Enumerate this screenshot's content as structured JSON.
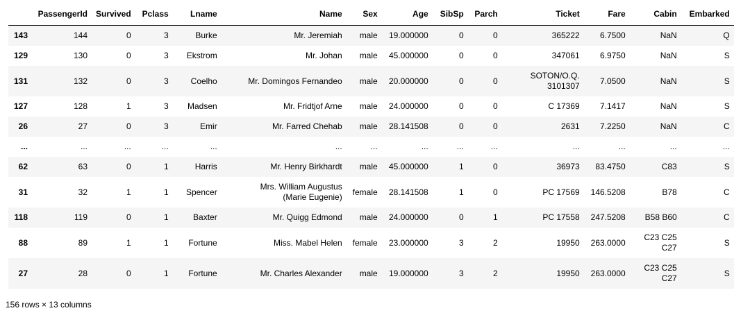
{
  "table": {
    "columns": [
      "PassengerId",
      "Survived",
      "Pclass",
      "Lname",
      "Name",
      "Sex",
      "Age",
      "SibSp",
      "Parch",
      "Ticket",
      "Fare",
      "Cabin",
      "Embarked"
    ],
    "rows": [
      {
        "index": "143",
        "cells": [
          "144",
          "0",
          "3",
          "Burke",
          "Mr. Jeremiah",
          "male",
          "19.000000",
          "0",
          "0",
          "365222",
          "6.7500",
          "NaN",
          "Q"
        ]
      },
      {
        "index": "129",
        "cells": [
          "130",
          "0",
          "3",
          "Ekstrom",
          "Mr. Johan",
          "male",
          "45.000000",
          "0",
          "0",
          "347061",
          "6.9750",
          "NaN",
          "S"
        ]
      },
      {
        "index": "131",
        "cells": [
          "132",
          "0",
          "3",
          "Coelho",
          "Mr. Domingos Fernandeo",
          "male",
          "20.000000",
          "0",
          "0",
          "SOTON/O.Q. 3101307",
          "7.0500",
          "NaN",
          "S"
        ]
      },
      {
        "index": "127",
        "cells": [
          "128",
          "1",
          "3",
          "Madsen",
          "Mr. Fridtjof Arne",
          "male",
          "24.000000",
          "0",
          "0",
          "C 17369",
          "7.1417",
          "NaN",
          "S"
        ]
      },
      {
        "index": "26",
        "cells": [
          "27",
          "0",
          "3",
          "Emir",
          "Mr. Farred Chehab",
          "male",
          "28.141508",
          "0",
          "0",
          "2631",
          "7.2250",
          "NaN",
          "C"
        ]
      },
      {
        "index": "...",
        "cells": [
          "...",
          "...",
          "...",
          "...",
          "...",
          "...",
          "...",
          "...",
          "...",
          "...",
          "...",
          "...",
          "..."
        ]
      },
      {
        "index": "62",
        "cells": [
          "63",
          "0",
          "1",
          "Harris",
          "Mr. Henry Birkhardt",
          "male",
          "45.000000",
          "1",
          "0",
          "36973",
          "83.4750",
          "C83",
          "S"
        ]
      },
      {
        "index": "31",
        "cells": [
          "32",
          "1",
          "1",
          "Spencer",
          "Mrs. William Augustus (Marie Eugenie)",
          "female",
          "28.141508",
          "1",
          "0",
          "PC 17569",
          "146.5208",
          "B78",
          "C"
        ]
      },
      {
        "index": "118",
        "cells": [
          "119",
          "0",
          "1",
          "Baxter",
          "Mr. Quigg Edmond",
          "male",
          "24.000000",
          "0",
          "1",
          "PC 17558",
          "247.5208",
          "B58 B60",
          "C"
        ]
      },
      {
        "index": "88",
        "cells": [
          "89",
          "1",
          "1",
          "Fortune",
          "Miss. Mabel Helen",
          "female",
          "23.000000",
          "3",
          "2",
          "19950",
          "263.0000",
          "C23 C25 C27",
          "S"
        ]
      },
      {
        "index": "27",
        "cells": [
          "28",
          "0",
          "1",
          "Fortune",
          "Mr. Charles Alexander",
          "male",
          "19.000000",
          "3",
          "2",
          "19950",
          "263.0000",
          "C23 C25 C27",
          "S"
        ]
      }
    ]
  },
  "caption": "156 rows × 13 columns"
}
